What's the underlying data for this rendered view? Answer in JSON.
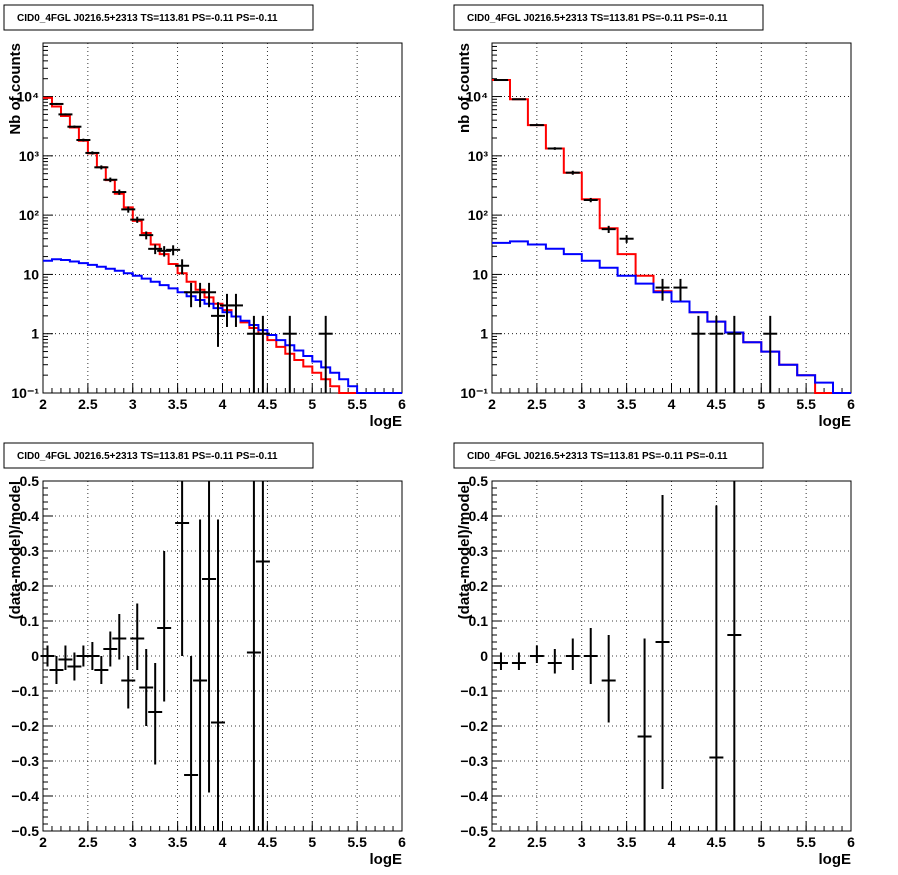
{
  "chart_data": [
    {
      "type": "step+errorbar",
      "title": "CID0_4FGL J0216.5+2313 TS=113.81 PS=-0.11 PS=-0.11",
      "xlabel": "logE",
      "ylabel": "Nb of counts",
      "log_y": true,
      "xlim": [
        2,
        6
      ],
      "ylim": [
        0.1,
        80000
      ],
      "x_ticks": [
        "2",
        "2.5",
        "3",
        "3.5",
        "4",
        "4.5",
        "5",
        "5.5",
        "6"
      ],
      "y_ticks": [
        "10⁻¹",
        "1",
        "10",
        "10²",
        "10³",
        "10⁴"
      ],
      "grid": true,
      "bin_edges": [
        2.0,
        2.1,
        2.2,
        2.3,
        2.4,
        2.5,
        2.6,
        2.7,
        2.8,
        2.9,
        3.0,
        3.1,
        3.2,
        3.3,
        3.4,
        3.5,
        3.6,
        3.7,
        3.8,
        3.9,
        4.0,
        4.1,
        4.2,
        4.3,
        4.4,
        4.5,
        4.6,
        4.7,
        4.8,
        4.9,
        5.0,
        5.1,
        5.2,
        5.3,
        5.4,
        5.5,
        5.6,
        5.7,
        5.8,
        5.9,
        6.0
      ],
      "series": [
        {
          "kind": "step",
          "color": "#ff0000",
          "values": [
            9500,
            6800,
            4700,
            3000,
            1800,
            1100,
            640,
            390,
            230,
            135,
            80,
            50,
            32,
            22,
            15,
            10.5,
            7.5,
            5.5,
            4.1,
            3.2,
            2.5,
            1.95,
            1.55,
            1.25,
            1.0,
            0.78,
            0.6,
            0.46,
            0.36,
            0.28,
            0.22,
            0.17,
            0.13,
            0.1,
            0.1,
            0.1,
            0.1,
            0.1,
            0.1,
            0.1
          ]
        },
        {
          "kind": "step",
          "color": "#0000ff",
          "values": [
            17,
            18,
            17.5,
            16.5,
            15.5,
            14.5,
            13.5,
            12.5,
            11.5,
            10.5,
            9.5,
            8.5,
            7.5,
            6.6,
            5.8,
            5.0,
            4.3,
            3.7,
            3.2,
            2.7,
            2.3,
            1.95,
            1.65,
            1.4,
            1.15,
            0.95,
            0.78,
            0.64,
            0.52,
            0.42,
            0.34,
            0.27,
            0.22,
            0.17,
            0.13,
            0.1,
            0.1,
            0.1,
            0.1,
            0.1
          ]
        },
        {
          "kind": "points",
          "color": "#000000",
          "points": [
            {
              "x": 2.15,
              "y": 7500,
              "lo": 7200,
              "hi": 7800
            },
            {
              "x": 2.25,
              "y": 5000,
              "lo": 4800,
              "hi": 5200
            },
            {
              "x": 2.35,
              "y": 3100,
              "lo": 2950,
              "hi": 3250
            },
            {
              "x": 2.45,
              "y": 1850,
              "lo": 1750,
              "hi": 1950
            },
            {
              "x": 2.55,
              "y": 1120,
              "lo": 1050,
              "hi": 1190
            },
            {
              "x": 2.65,
              "y": 640,
              "lo": 590,
              "hi": 690
            },
            {
              "x": 2.75,
              "y": 395,
              "lo": 360,
              "hi": 430
            },
            {
              "x": 2.85,
              "y": 245,
              "lo": 220,
              "hi": 270
            },
            {
              "x": 2.95,
              "y": 125,
              "lo": 110,
              "hi": 140
            },
            {
              "x": 3.05,
              "y": 84,
              "lo": 74,
              "hi": 94
            },
            {
              "x": 3.15,
              "y": 46,
              "lo": 39,
              "hi": 53
            },
            {
              "x": 3.25,
              "y": 27,
              "lo": 22,
              "hi": 32
            },
            {
              "x": 3.35,
              "y": 25,
              "lo": 20,
              "hi": 30
            },
            {
              "x": 3.45,
              "y": 26,
              "lo": 21,
              "hi": 31
            },
            {
              "x": 3.55,
              "y": 14,
              "lo": 10,
              "hi": 18
            },
            {
              "x": 3.65,
              "y": 5,
              "lo": 2.8,
              "hi": 7.2
            },
            {
              "x": 3.75,
              "y": 5,
              "lo": 2.8,
              "hi": 7.2
            },
            {
              "x": 3.85,
              "y": 5,
              "lo": 2.8,
              "hi": 7.2
            },
            {
              "x": 3.95,
              "y": 2,
              "lo": 0.6,
              "hi": 3.4
            },
            {
              "x": 4.05,
              "y": 3,
              "lo": 1.3,
              "hi": 4.7
            },
            {
              "x": 4.15,
              "y": 3,
              "lo": 1.3,
              "hi": 4.7
            },
            {
              "x": 4.35,
              "y": 1,
              "lo": 0.1,
              "hi": 2.0
            },
            {
              "x": 4.45,
              "y": 1,
              "lo": 0.1,
              "hi": 2.0
            },
            {
              "x": 4.75,
              "y": 1,
              "lo": 0.1,
              "hi": 2.0
            },
            {
              "x": 5.15,
              "y": 1,
              "lo": 0.1,
              "hi": 2.0
            }
          ]
        }
      ]
    },
    {
      "type": "step+errorbar",
      "title": "CID0_4FGL J0216.5+2313 TS=113.81 PS=-0.11 PS=-0.11",
      "xlabel": "logE",
      "ylabel": "nb of counts",
      "log_y": true,
      "xlim": [
        2,
        6
      ],
      "ylim": [
        0.1,
        80000
      ],
      "x_ticks": [
        "2",
        "2.5",
        "3",
        "3.5",
        "4",
        "4.5",
        "5",
        "5.5",
        "6"
      ],
      "y_ticks": [
        "10⁻¹",
        "1",
        "10",
        "10²",
        "10³",
        "10⁴"
      ],
      "grid": true,
      "bin_edges": [
        2.0,
        2.2,
        2.4,
        2.6,
        2.8,
        3.0,
        3.2,
        3.4,
        3.6,
        3.8,
        4.0,
        4.2,
        4.4,
        4.6,
        4.8,
        5.0,
        5.2,
        5.4,
        5.6,
        5.8,
        6.0
      ],
      "series": [
        {
          "kind": "step",
          "color": "#ff0000",
          "values": [
            19000,
            9000,
            3300,
            1330,
            520,
            185,
            60,
            22,
            9.5,
            5.2,
            3.5,
            2.3,
            1.6,
            1.05,
            0.72,
            0.5,
            0.3,
            0.2,
            0.1,
            0.1
          ]
        },
        {
          "kind": "step",
          "color": "#0000ff",
          "values": [
            34,
            36,
            32,
            27,
            22,
            17,
            13,
            9.5,
            7,
            5,
            3.5,
            2.3,
            1.6,
            1.05,
            0.72,
            0.5,
            0.3,
            0.2,
            0.15,
            0.1
          ]
        },
        {
          "kind": "points",
          "color": "#000000",
          "points": [
            {
              "x": 2.1,
              "y": 19000,
              "lo": 18500,
              "hi": 19500
            },
            {
              "x": 2.3,
              "y": 9000,
              "lo": 8800,
              "hi": 9200
            },
            {
              "x": 2.5,
              "y": 3300,
              "lo": 3200,
              "hi": 3400
            },
            {
              "x": 2.7,
              "y": 1330,
              "lo": 1260,
              "hi": 1400
            },
            {
              "x": 2.9,
              "y": 520,
              "lo": 480,
              "hi": 560
            },
            {
              "x": 3.1,
              "y": 180,
              "lo": 165,
              "hi": 195
            },
            {
              "x": 3.3,
              "y": 58,
              "lo": 50,
              "hi": 66
            },
            {
              "x": 3.5,
              "y": 40,
              "lo": 34,
              "hi": 46
            },
            {
              "x": 3.9,
              "y": 6,
              "lo": 3.6,
              "hi": 8.4
            },
            {
              "x": 4.1,
              "y": 6,
              "lo": 3.6,
              "hi": 8.4
            },
            {
              "x": 4.3,
              "y": 1,
              "lo": 0.1,
              "hi": 2.0
            },
            {
              "x": 4.5,
              "y": 1,
              "lo": 0.1,
              "hi": 2.0
            },
            {
              "x": 4.7,
              "y": 1,
              "lo": 0.1,
              "hi": 2.0
            },
            {
              "x": 5.1,
              "y": 1,
              "lo": 0.1,
              "hi": 2.0
            }
          ]
        }
      ]
    },
    {
      "type": "errorbar",
      "title": "CID0_4FGL J0216.5+2313 TS=113.81 PS=-0.11 PS=-0.11",
      "xlabel": "logE",
      "ylabel": "(data-model)/model",
      "log_y": false,
      "xlim": [
        2,
        6
      ],
      "ylim": [
        -0.5,
        0.5
      ],
      "x_ticks": [
        "2",
        "2.5",
        "3",
        "3.5",
        "4",
        "4.5",
        "5",
        "5.5",
        "6"
      ],
      "y_ticks": [
        "−0.5",
        "−0.4",
        "−0.3",
        "−0.2",
        "−0.1",
        "0",
        "0.1",
        "0.2",
        "0.3",
        "0.4",
        "0.5"
      ],
      "grid": true,
      "series": [
        {
          "kind": "points",
          "color": "#000000",
          "points": [
            {
              "x": 2.05,
              "y": 0.0,
              "lo": -0.03,
              "hi": 0.03
            },
            {
              "x": 2.15,
              "y": -0.04,
              "lo": -0.08,
              "hi": 0.0
            },
            {
              "x": 2.25,
              "y": -0.01,
              "lo": -0.04,
              "hi": 0.03
            },
            {
              "x": 2.35,
              "y": -0.03,
              "lo": -0.07,
              "hi": 0.01
            },
            {
              "x": 2.45,
              "y": 0.0,
              "lo": -0.03,
              "hi": 0.03
            },
            {
              "x": 2.55,
              "y": 0.0,
              "lo": -0.04,
              "hi": 0.04
            },
            {
              "x": 2.65,
              "y": -0.04,
              "lo": -0.08,
              "hi": 0.0
            },
            {
              "x": 2.75,
              "y": 0.02,
              "lo": -0.03,
              "hi": 0.07
            },
            {
              "x": 2.85,
              "y": 0.05,
              "lo": -0.01,
              "hi": 0.12
            },
            {
              "x": 2.95,
              "y": -0.07,
              "lo": -0.15,
              "hi": 0.0
            },
            {
              "x": 3.05,
              "y": 0.05,
              "lo": -0.04,
              "hi": 0.15
            },
            {
              "x": 3.15,
              "y": -0.09,
              "lo": -0.2,
              "hi": 0.02
            },
            {
              "x": 3.25,
              "y": -0.16,
              "lo": -0.31,
              "hi": -0.02
            },
            {
              "x": 3.35,
              "y": 0.08,
              "lo": -0.13,
              "hi": 0.3
            },
            {
              "x": 3.55,
              "y": 0.38,
              "lo": 0.0,
              "hi": 0.5
            },
            {
              "x": 3.65,
              "y": -0.34,
              "lo": -0.5,
              "hi": 0.0
            },
            {
              "x": 3.75,
              "y": -0.07,
              "lo": -0.5,
              "hi": 0.39
            },
            {
              "x": 3.85,
              "y": 0.22,
              "lo": -0.39,
              "hi": 0.5
            },
            {
              "x": 3.95,
              "y": -0.19,
              "lo": -0.5,
              "hi": 0.39
            },
            {
              "x": 4.35,
              "y": 0.01,
              "lo": -0.5,
              "hi": 0.5
            },
            {
              "x": 4.45,
              "y": 0.27,
              "lo": -0.5,
              "hi": 0.5
            }
          ]
        }
      ]
    },
    {
      "type": "errorbar",
      "title": "CID0_4FGL J0216.5+2313 TS=113.81 PS=-0.11 PS=-0.11",
      "xlabel": "logE",
      "ylabel": "(data-model)/model",
      "log_y": false,
      "xlim": [
        2,
        6
      ],
      "ylim": [
        -0.5,
        0.5
      ],
      "x_ticks": [
        "2",
        "2.5",
        "3",
        "3.5",
        "4",
        "4.5",
        "5",
        "5.5",
        "6"
      ],
      "y_ticks": [
        "−0.5",
        "−0.4",
        "−0.3",
        "−0.2",
        "−0.1",
        "0",
        "0.1",
        "0.2",
        "0.3",
        "0.4",
        "0.5"
      ],
      "grid": true,
      "series": [
        {
          "kind": "points",
          "color": "#000000",
          "points": [
            {
              "x": 2.1,
              "y": -0.02,
              "lo": -0.04,
              "hi": 0.01
            },
            {
              "x": 2.3,
              "y": -0.02,
              "lo": -0.04,
              "hi": 0.01
            },
            {
              "x": 2.5,
              "y": 0.0,
              "lo": -0.02,
              "hi": 0.03
            },
            {
              "x": 2.7,
              "y": -0.02,
              "lo": -0.05,
              "hi": 0.02
            },
            {
              "x": 2.9,
              "y": 0.0,
              "lo": -0.04,
              "hi": 0.05
            },
            {
              "x": 3.1,
              "y": -0.0,
              "lo": -0.08,
              "hi": 0.08
            },
            {
              "x": 3.3,
              "y": -0.07,
              "lo": -0.19,
              "hi": 0.06
            },
            {
              "x": 3.7,
              "y": -0.23,
              "lo": -0.5,
              "hi": 0.05
            },
            {
              "x": 3.9,
              "y": 0.04,
              "lo": -0.38,
              "hi": 0.46
            },
            {
              "x": 4.5,
              "y": -0.29,
              "lo": -0.5,
              "hi": 0.43
            },
            {
              "x": 4.7,
              "y": 0.06,
              "lo": -0.5,
              "hi": 0.5
            }
          ]
        }
      ]
    }
  ]
}
